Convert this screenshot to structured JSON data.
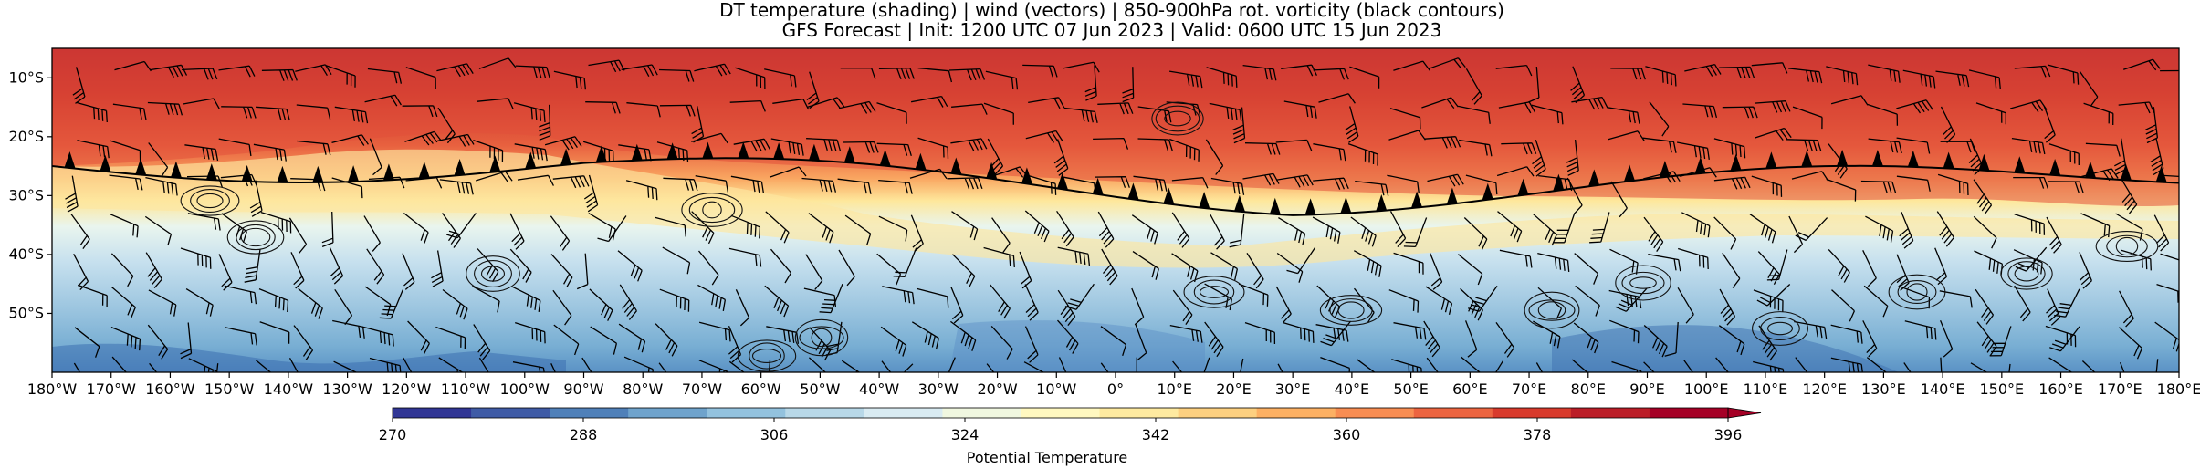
{
  "chart_data": {
    "type": "heatmap",
    "title_line1": "DT temperature (shading) | wind (vectors) | 850-900hPa rot. vorticity (black contours)",
    "title_line2": "GFS Forecast | Init: 1200 UTC 07 Jun 2023 | Valid: 0600 UTC 15 Jun 2023",
    "xlim": [
      -180,
      180
    ],
    "ylim": [
      -60,
      -5
    ],
    "x_ticks": [
      -180,
      -170,
      -160,
      -150,
      -140,
      -130,
      -120,
      -110,
      -100,
      -90,
      -80,
      -70,
      -60,
      -50,
      -40,
      -30,
      -20,
      -10,
      0,
      10,
      20,
      30,
      40,
      50,
      60,
      70,
      80,
      90,
      100,
      110,
      120,
      130,
      140,
      150,
      160,
      170,
      180
    ],
    "x_tick_labels": [
      "180°W",
      "170°W",
      "160°W",
      "150°W",
      "140°W",
      "130°W",
      "120°W",
      "110°W",
      "100°W",
      "90°W",
      "80°W",
      "70°W",
      "60°W",
      "50°W",
      "40°W",
      "30°W",
      "20°W",
      "10°W",
      "0°",
      "10°E",
      "20°E",
      "30°E",
      "40°E",
      "50°E",
      "60°E",
      "70°E",
      "80°E",
      "90°E",
      "100°E",
      "110°E",
      "120°E",
      "130°E",
      "140°E",
      "150°E",
      "160°E",
      "170°E",
      "180°E"
    ],
    "y_ticks": [
      -10,
      -20,
      -30,
      -40,
      -50
    ],
    "y_tick_labels": [
      "10°S",
      "20°S",
      "30°S",
      "40°S",
      "50°S"
    ],
    "colorbar": {
      "label": "Potential Temperature",
      "min": 270,
      "max": 396,
      "ticks": [
        270,
        288,
        306,
        324,
        342,
        360,
        378,
        396
      ],
      "tick_labels": [
        "270",
        "288",
        "306",
        "324",
        "342",
        "360",
        "378",
        "396"
      ],
      "extend": "max",
      "colors": [
        "#313695",
        "#3f5ba6",
        "#4f80b9",
        "#6fa3cc",
        "#93c2de",
        "#b8d8e8",
        "#d9ebf2",
        "#f0f7e0",
        "#fff8c0",
        "#feeaa0",
        "#fdd080",
        "#fcb063",
        "#f88d52",
        "#ec6440",
        "#d83a2c",
        "#bb1d27",
        "#a50026"
      ]
    },
    "field_description": {
      "warm_sector_lat": [
        -5,
        -30
      ],
      "cold_sector_lat": [
        -30,
        -60
      ]
    }
  }
}
